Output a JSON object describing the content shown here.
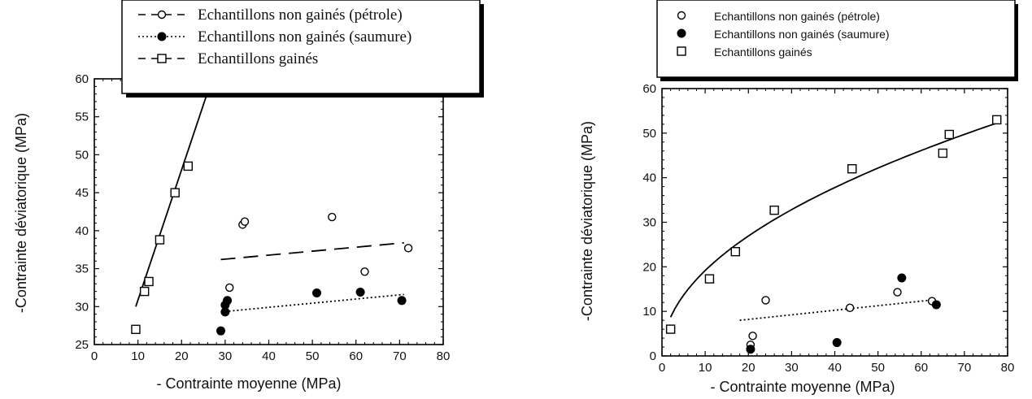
{
  "chart_data": [
    {
      "type": "scatter",
      "xlabel": "- Contrainte moyenne (MPa)",
      "ylabel": "-Contrainte déviatorique (MPa)",
      "xlim": [
        0,
        80
      ],
      "ylim": [
        25,
        60
      ],
      "xticks": [
        0,
        10,
        20,
        30,
        40,
        50,
        60,
        70,
        80
      ],
      "yticks": [
        25,
        30,
        35,
        40,
        45,
        50,
        55,
        60
      ],
      "legend_position": "top-right",
      "grid": false,
      "series": [
        {
          "name": "Echantillons non gainés (pétrole)",
          "marker": "open-circle",
          "fit_style": "dashed",
          "points": [
            [
              31,
              32.5
            ],
            [
              34,
              40.8
            ],
            [
              34.5,
              41.2
            ],
            [
              54.5,
              41.8
            ],
            [
              62,
              34.6
            ],
            [
              72,
              37.7
            ]
          ],
          "fit": [
            [
              29,
              36.2
            ],
            [
              71,
              38.4
            ]
          ]
        },
        {
          "name": "Echantillons non gainés (saumure)",
          "marker": "filled-circle",
          "fit_style": "dotted",
          "points": [
            [
              29,
              26.8
            ],
            [
              30,
              29.3
            ],
            [
              30,
              30.2
            ],
            [
              30.5,
              30.8
            ],
            [
              51,
              31.8
            ],
            [
              61,
              31.9
            ],
            [
              70.5,
              30.8
            ]
          ],
          "fit": [
            [
              29,
              29.3
            ],
            [
              71,
              31.6
            ]
          ]
        },
        {
          "name": "Echantillons gainés",
          "marker": "open-square",
          "fit_style": "solid",
          "points": [
            [
              9.5,
              27
            ],
            [
              11.5,
              32
            ],
            [
              12.5,
              33.3
            ],
            [
              15,
              38.8
            ],
            [
              18.5,
              45
            ],
            [
              21.5,
              48.5
            ]
          ],
          "fit": [
            [
              9.5,
              30
            ],
            [
              27,
              60
            ]
          ]
        }
      ]
    },
    {
      "type": "scatter",
      "xlabel": "- Contrainte moyenne (MPa)",
      "ylabel": "-Contrainte déviatorique (MPa)",
      "xlim": [
        0,
        80
      ],
      "ylim": [
        0,
        60
      ],
      "xticks": [
        0,
        10,
        20,
        30,
        40,
        50,
        60,
        70,
        80
      ],
      "yticks": [
        0,
        10,
        20,
        30,
        40,
        50,
        60
      ],
      "legend_position": "top-left",
      "grid": false,
      "series": [
        {
          "name": "Echantillons non gainés (pétrole)",
          "marker": "open-circle",
          "points": [
            [
              20.5,
              2.5
            ],
            [
              21,
              4.5
            ],
            [
              24,
              12.5
            ],
            [
              43.5,
              10.8
            ],
            [
              54.5,
              14.3
            ],
            [
              62.5,
              12.3
            ]
          ]
        },
        {
          "name": "Echantillons non gainés (saumure)",
          "marker": "filled-circle",
          "fit_style": "dotted",
          "points": [
            [
              20.5,
              1.5
            ],
            [
              40.5,
              3
            ],
            [
              55.5,
              17.5
            ],
            [
              63.5,
              11.5
            ]
          ],
          "fit": [
            [
              18,
              8
            ],
            [
              62,
              12.5
            ]
          ]
        },
        {
          "name": "Echantillons gainés",
          "marker": "open-square",
          "fit_style": "solid",
          "points": [
            [
              2,
              6
            ],
            [
              11,
              17.3
            ],
            [
              17,
              23.4
            ],
            [
              26,
              32.7
            ],
            [
              44,
              42
            ],
            [
              65,
              45.5
            ],
            [
              66.5,
              49.7
            ],
            [
              77.5,
              53
            ]
          ],
          "fit_curve": "power"
        }
      ]
    }
  ]
}
